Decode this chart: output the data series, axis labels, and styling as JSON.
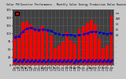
{
  "title": "Solar PV/Inverter Performance - Monthly Solar Energy Production Value Running Average",
  "months": [
    "Jan\n'10",
    "Feb\n'10",
    "Mar\n'10",
    "Apr\n'10",
    "May\n'10",
    "Jun\n'10",
    "Jul\n'10",
    "Aug\n'10",
    "Sep\n'10",
    "Oct\n'10",
    "Nov\n'10",
    "Dec\n'10",
    "Jan\n'11",
    "Feb\n'11",
    "Mar\n'11",
    "Apr\n'11",
    "May\n'11",
    "Jun\n'11",
    "Jul\n'11",
    "Aug\n'11",
    "Sep\n'11",
    "Oct\n'11",
    "Nov\n'11",
    "Dec\n'11",
    "Jan\n'12"
  ],
  "bar_values": [
    88,
    95,
    135,
    138,
    128,
    118,
    112,
    122,
    108,
    92,
    52,
    62,
    72,
    102,
    78,
    68,
    112,
    122,
    132,
    142,
    128,
    82,
    52,
    62,
    158
  ],
  "dot_values_main": [
    12,
    10,
    11,
    10,
    9,
    9,
    10,
    10,
    10,
    10,
    10,
    10,
    10,
    10,
    10,
    8,
    9,
    9,
    9,
    9,
    9,
    9,
    9,
    9,
    10
  ],
  "running_avg": [
    88,
    90,
    106,
    114,
    117,
    113,
    111,
    112,
    110,
    107,
    100,
    97,
    95,
    96,
    95,
    93,
    95,
    97,
    100,
    104,
    105,
    103,
    100,
    98,
    101
  ],
  "bar_color": "#ff0000",
  "dot_color": "#0000cc",
  "avg_color": "#0000cc",
  "plot_bg_color": "#404040",
  "fig_bg_color": "#c8c8c8",
  "grid_color": "#777777",
  "text_color": "#000000",
  "ylim": [
    0,
    175
  ],
  "yticks": [
    0,
    25,
    50,
    75,
    100,
    125,
    150,
    175
  ],
  "avg_level": 100,
  "right_labels": [
    "r.a",
    "kW",
    "H/",
    "D",
    "Di"
  ]
}
